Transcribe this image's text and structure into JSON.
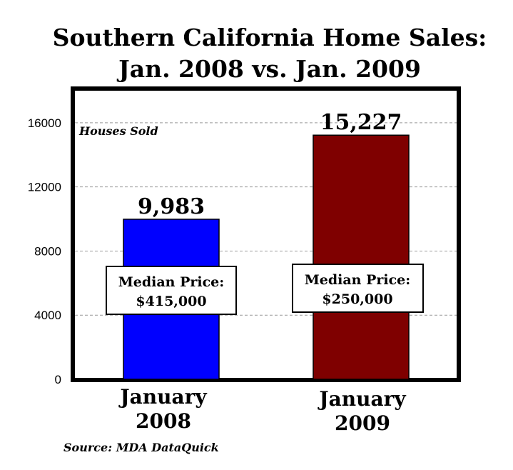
{
  "chart_data": {
    "type": "bar",
    "title": "Southern California Home Sales:",
    "subtitle": "Jan. 2008 vs. Jan. 2009",
    "ylabel": "Houses Sold",
    "xlabel": "",
    "ylim": [
      0,
      18000
    ],
    "yticks": [
      0,
      4000,
      8000,
      12000,
      16000
    ],
    "grid": true,
    "categories": [
      [
        "January",
        "2008"
      ],
      [
        "January",
        "2009"
      ]
    ],
    "values": [
      9983,
      15227
    ],
    "value_labels": [
      "9,983",
      "15,227"
    ],
    "annotations": [
      {
        "line1": "Median Price:",
        "line2": "$415,000"
      },
      {
        "line1": "Median Price:",
        "line2": "$250,000"
      }
    ],
    "colors": [
      "#0000ff",
      "#7f0000"
    ],
    "source": "Source: MDA DataQuick"
  }
}
